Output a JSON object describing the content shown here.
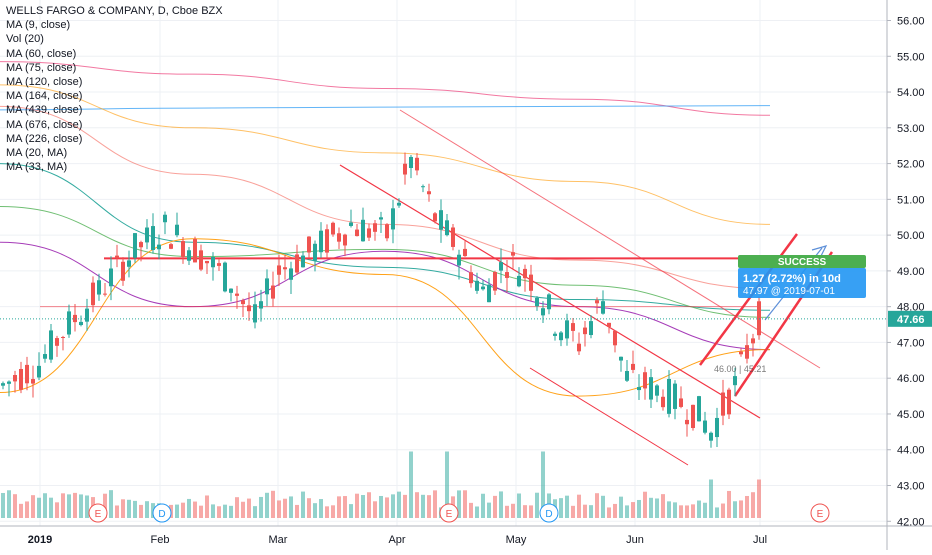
{
  "header": {
    "title": "WELLS FARGO & COMPANY, D, Cboe BZX"
  },
  "indicators": [
    "MA (9, close)",
    "Vol (20)",
    "MA (60, close)",
    "MA (75, close)",
    "MA (120, close)",
    "MA (164, close)",
    "MA (439, close)",
    "MA (676, close)",
    "MA (226, close)",
    "MA (20, MA)",
    "MA (33, MA)"
  ],
  "price_axis": {
    "ticks": [
      "56.00",
      "55.00",
      "54.00",
      "53.00",
      "52.00",
      "51.00",
      "50.00",
      "49.00",
      "48.00",
      "47.00",
      "46.00",
      "45.00",
      "44.00",
      "43.00",
      "42.00"
    ],
    "last_price_label": "47.66"
  },
  "time_axis": {
    "ticks": [
      "2019",
      "Feb",
      "Mar",
      "Apr",
      "May",
      "Jun",
      "Jul"
    ]
  },
  "event_markers": [
    "E",
    "D",
    "E",
    "D",
    "E"
  ],
  "annotation": {
    "status": "SUCCESS",
    "change": "1.27 (2.72%) in 10d",
    "detail": "47.97 @ 2019-07-01",
    "pattern_box": "46.00 | 45.21"
  },
  "colors": {
    "up": "#26a69a",
    "down": "#ef5350",
    "last_price": "#26a69a",
    "success": "#4caf50",
    "info_box": "#2196f3",
    "trendline": "#f23645"
  },
  "chart_data": {
    "type": "candlestick",
    "title": "WELLS FARGO & COMPANY, D, Cboe BZX",
    "ylim": [
      42,
      56.5
    ],
    "x_axis": [
      "2019",
      "Feb",
      "Mar",
      "Apr",
      "May",
      "Jun",
      "Jul"
    ],
    "last_price": 47.66,
    "horizontal_lines": [
      49.35,
      48.0
    ],
    "moving_averages": [
      {
        "name": "MA (676, close)",
        "values": [
          54.85,
          54.5,
          54.1,
          53.8,
          53.35
        ]
      },
      {
        "name": "MA (439, close)",
        "values": [
          53.5,
          53.55,
          53.58,
          53.6,
          53.62
        ]
      },
      {
        "name": "MA (226, close)",
        "values": [
          54.2,
          53.0,
          52.3,
          51.5,
          50.3
        ]
      },
      {
        "name": "MA (164, close)",
        "values": [
          53.6,
          51.7,
          50.3,
          49.3,
          48.5
        ]
      },
      {
        "name": "MA (120, close)",
        "values": [
          52.0,
          49.8,
          49.1,
          48.2,
          47.9
        ]
      },
      {
        "name": "MA (75, close)",
        "values": [
          50.8,
          49.4,
          49.6,
          48.6,
          47.7
        ]
      },
      {
        "name": "MA (60, close)",
        "values": [
          49.8,
          48.0,
          49.55,
          48.0,
          46.8
        ]
      },
      {
        "name": "MA (9, close)",
        "values": [
          45.6,
          49.9,
          48.9,
          45.5,
          46.8
        ]
      }
    ]
  }
}
